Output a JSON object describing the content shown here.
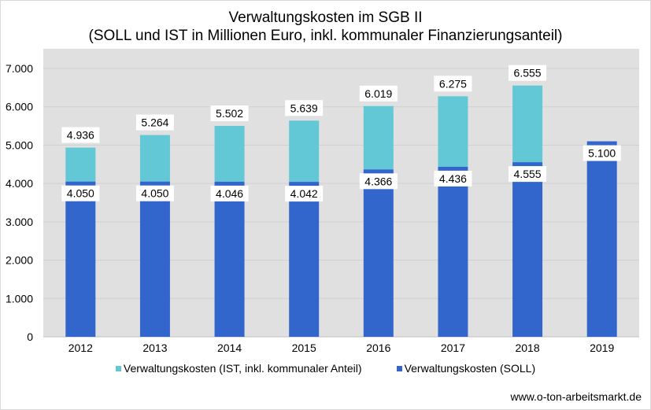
{
  "chart_data": {
    "type": "bar",
    "title": "Verwaltungskosten im SGB II",
    "subtitle": "(SOLL und IST in Millionen Euro, inkl. kommunaler Finanzierungsanteil)",
    "xlabel": "",
    "ylabel": "",
    "categories": [
      "2012",
      "2013",
      "2014",
      "2015",
      "2016",
      "2017",
      "2018",
      "2019"
    ],
    "series": [
      {
        "name": "Verwaltungskosten (IST, inkl. kommunaler Anteil)",
        "color": "#63c8d6",
        "values": [
          4936,
          5264,
          5502,
          5639,
          6019,
          6275,
          6555,
          null
        ],
        "labels": [
          "4.936",
          "5.264",
          "5.502",
          "5.639",
          "6.019",
          "6.275",
          "6.555",
          ""
        ]
      },
      {
        "name": "Verwaltungskosten (SOLL)",
        "color": "#3366cc",
        "values": [
          4050,
          4050,
          4046,
          4042,
          4366,
          4436,
          4555,
          5100
        ],
        "labels": [
          "4.050",
          "4.050",
          "4.046",
          "4.042",
          "4.366",
          "4.436",
          "4.555",
          "5.100"
        ]
      }
    ],
    "ylim": [
      0,
      7000
    ],
    "yticks": [
      0,
      1000,
      2000,
      3000,
      4000,
      5000,
      6000,
      7000
    ],
    "ytick_labels": [
      "0",
      "1.000",
      "2.000",
      "3.000",
      "4.000",
      "5.000",
      "6.000",
      "7.000"
    ],
    "grid": true,
    "legend_position": "bottom"
  },
  "colors": {
    "plot_background": "#e0e0e0",
    "gridline": "#cfcfcf"
  },
  "source": "www.o-ton-arbeitsmarkt.de"
}
